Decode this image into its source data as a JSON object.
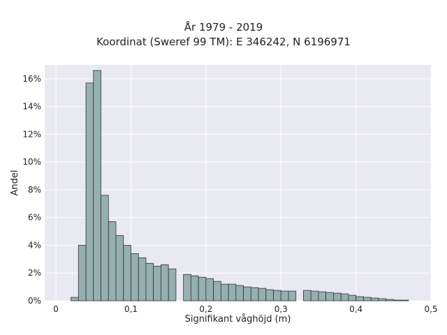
{
  "chart_data": {
    "type": "bar",
    "title": "År 1979 - 2019",
    "subtitle": "Koordinat (Sweref 99 TM): E 346242, N 6196971",
    "xlabel": "Signifikant våghöjd (m)",
    "ylabel": "Andel",
    "xlim": [
      -0.015,
      0.5
    ],
    "ylim": [
      0,
      0.17
    ],
    "x_ticks": [
      0,
      0.1,
      0.2,
      0.3,
      0.4,
      0.5
    ],
    "x_tick_labels": [
      "0",
      "0,1",
      "0,2",
      "0,3",
      "0,4",
      "0,5"
    ],
    "y_ticks": [
      0,
      0.02,
      0.04,
      0.06,
      0.08,
      0.1,
      0.12,
      0.14,
      0.16
    ],
    "y_tick_labels": [
      "0%",
      "2%",
      "4%",
      "6%",
      "8%",
      "10%",
      "12%",
      "14%",
      "16%"
    ],
    "grid": true,
    "bar_color": "#95b0ae",
    "bar_edge_color": "#333333",
    "bin_width": 0.01,
    "bin_starts": [
      0.02,
      0.03,
      0.04,
      0.05,
      0.06,
      0.07,
      0.08,
      0.09,
      0.1,
      0.11,
      0.12,
      0.13,
      0.14,
      0.15,
      0.17,
      0.18,
      0.19,
      0.2,
      0.21,
      0.22,
      0.23,
      0.24,
      0.25,
      0.26,
      0.27,
      0.28,
      0.29,
      0.3,
      0.31,
      0.33,
      0.34,
      0.35,
      0.36,
      0.37,
      0.38,
      0.39,
      0.4,
      0.41,
      0.42,
      0.43,
      0.44,
      0.45,
      0.46
    ],
    "values": [
      0.0025,
      0.04,
      0.157,
      0.166,
      0.076,
      0.057,
      0.047,
      0.04,
      0.034,
      0.031,
      0.027,
      0.025,
      0.026,
      0.023,
      0.019,
      0.018,
      0.017,
      0.016,
      0.014,
      0.012,
      0.012,
      0.011,
      0.01,
      0.0095,
      0.009,
      0.008,
      0.0075,
      0.007,
      0.007,
      0.0075,
      0.007,
      0.0065,
      0.006,
      0.0055,
      0.005,
      0.004,
      0.003,
      0.0025,
      0.002,
      0.0015,
      0.001,
      0.0005,
      0.0005
    ]
  },
  "colors": {
    "plot_background": "#e9e9f1",
    "grid": "#ffffff"
  }
}
